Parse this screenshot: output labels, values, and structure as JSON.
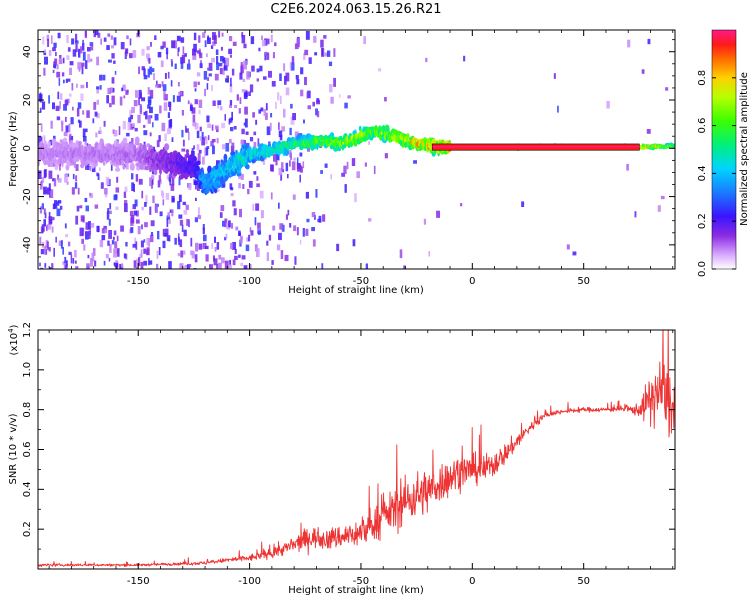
{
  "title": "C2E6.2024.063.15.26.R21",
  "chart_data": [
    {
      "type": "heatmap",
      "xlabel": "Height of straight line (km)",
      "ylabel": "Frequency (Hz)",
      "xlim": [
        -195,
        91
      ],
      "ylim": [
        -50,
        49
      ],
      "x_ticks": [
        -150,
        -100,
        -50,
        0,
        50
      ],
      "y_ticks": [
        -40,
        -20,
        0,
        20,
        40
      ],
      "colorbar": {
        "label": "Normalized spectral amplitude",
        "range": [
          0,
          1
        ],
        "ticks": [
          "0.0",
          "0.2",
          "0.4",
          "0.6",
          "0.8"
        ],
        "tick_values": [
          0,
          0.2,
          0.4,
          0.6,
          0.8
        ]
      },
      "ridge": {
        "x": [
          -195,
          -150,
          -125,
          -120,
          -110,
          -100,
          -80,
          -70,
          -60,
          -50,
          -45,
          -35,
          -25,
          -18,
          -10,
          0,
          30,
          60,
          75,
          91
        ],
        "freq": [
          -2,
          -3,
          -8,
          -15,
          -8,
          -3,
          2,
          3,
          2,
          5,
          7,
          5,
          2,
          1,
          0.5,
          0.5,
          0.5,
          0.5,
          0.5,
          1
        ],
        "amplitude": [
          0.1,
          0.12,
          0.25,
          0.45,
          0.5,
          0.55,
          0.62,
          0.7,
          0.78,
          0.8,
          0.72,
          0.85,
          0.92,
          0.96,
          0.98,
          1.0,
          1.0,
          1.0,
          0.95,
          0.7
        ]
      }
    },
    {
      "type": "line",
      "xlabel": "Height of straight line (km)",
      "ylabel": "SNR (10 * v/v)",
      "multiplier_label": "(x10",
      "multiplier_exp": "4",
      "multiplier_close": ")",
      "xlim": [
        -195,
        91
      ],
      "ylim": [
        0,
        12000
      ],
      "x_ticks": [
        -150,
        -100,
        -50,
        0,
        50
      ],
      "y_ticks": [
        2000,
        4000,
        6000,
        8000,
        10000,
        12000
      ],
      "y_tick_labels": [
        "0.2",
        "0.4",
        "0.6",
        "0.8",
        "1.0",
        "1.2"
      ],
      "color": "#ee3333",
      "series": [
        {
          "x": [
            -195,
            -180,
            -165,
            -150,
            -135,
            -120,
            -110,
            -100,
            -90,
            -80,
            -75,
            -70,
            -65,
            -60,
            -55,
            -50,
            -45,
            -40,
            -35,
            -30,
            -25,
            -20,
            -15,
            -10,
            -5,
            0,
            5,
            10,
            15,
            20,
            25,
            30,
            35,
            40,
            45,
            50,
            55,
            60,
            65,
            70,
            75,
            80,
            85,
            91
          ],
          "y": [
            200,
            200,
            200,
            200,
            250,
            300,
            450,
            550,
            800,
            1200,
            1500,
            1600,
            1500,
            1600,
            1700,
            1800,
            2200,
            2600,
            3000,
            3400,
            3700,
            3900,
            4300,
            4600,
            4900,
            5000,
            5000,
            5300,
            5800,
            6400,
            7000,
            7500,
            7800,
            7900,
            7950,
            8000,
            8000,
            8000,
            8050,
            8000,
            8000,
            8500,
            9000,
            7800
          ],
          "noise": [
            120,
            100,
            100,
            100,
            120,
            150,
            200,
            300,
            400,
            700,
            900,
            900,
            900,
            1000,
            1100,
            1200,
            1300,
            1500,
            1800,
            2000,
            2000,
            1900,
            1800,
            1600,
            1400,
            1300,
            1200,
            1100,
            900,
            700,
            500,
            350,
            250,
            200,
            200,
            200,
            200,
            200,
            250,
            300,
            600,
            2200,
            3000,
            3000
          ]
        }
      ]
    }
  ]
}
